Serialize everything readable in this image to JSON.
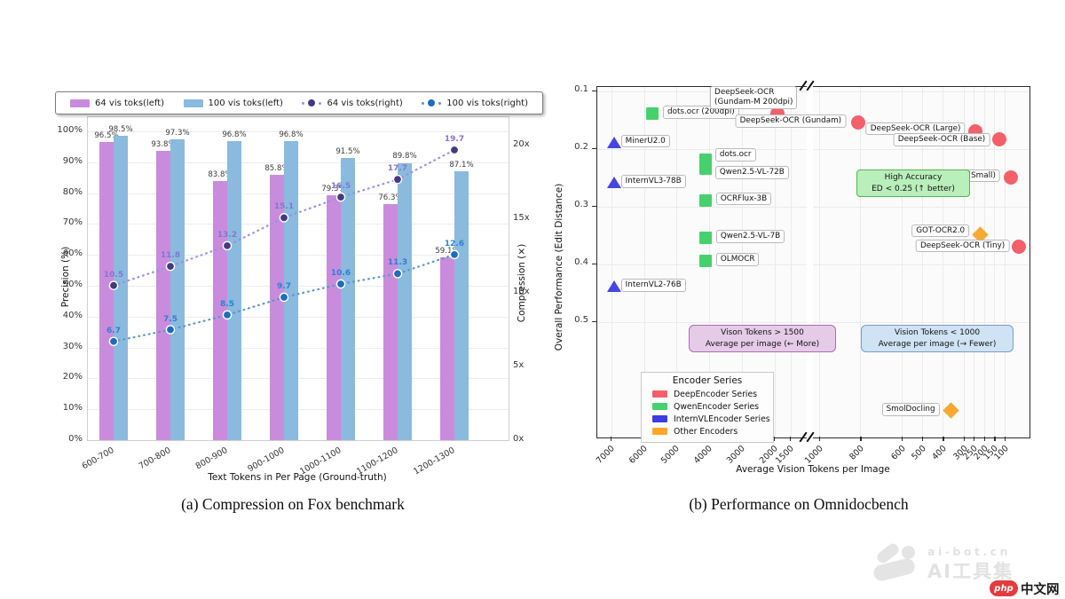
{
  "figure": {
    "caption_a": "(a)  Compression on Fox benchmark",
    "caption_b": "(b)  Performance on Omnidocbench"
  },
  "watermark": {
    "site": "ai-bot.cn",
    "brand": "AI工具集",
    "php_badge": "php",
    "php_site": "中文网"
  },
  "chart_data": [
    {
      "type": "bar",
      "title": "",
      "xlabel": "Text Tokens in Per Page (Ground-truth)",
      "ylabel_left": "Precision (%)",
      "ylabel_right": "Compression (×)",
      "categories": [
        "600-700",
        "700-800",
        "800-900",
        "900-1000",
        "1000-1100",
        "1100-1200",
        "1200-1300"
      ],
      "yticks_left": [
        "0%",
        "10%",
        "20%",
        "30%",
        "40%",
        "50%",
        "60%",
        "70%",
        "80%",
        "90%",
        "100%"
      ],
      "yticks_right": [
        "0x",
        "5x",
        "10x",
        "15x",
        "20x"
      ],
      "ylim_left": [
        0,
        104.5
      ],
      "ylim_right": [
        0,
        21.9
      ],
      "grid": "horizontal",
      "series": [
        {
          "name": "64 vis toks(left)",
          "type": "bar",
          "axis": "left",
          "color": "#c98cdc",
          "values": [
            96.5,
            93.8,
            83.8,
            85.8,
            79.3,
            76.3,
            59.1
          ]
        },
        {
          "name": "100 vis toks(left)",
          "type": "bar",
          "axis": "left",
          "color": "#8abade",
          "values": [
            98.5,
            97.3,
            96.8,
            96.8,
            91.5,
            89.8,
            87.1
          ]
        },
        {
          "name": "64 vis toks(right)",
          "type": "line",
          "axis": "right",
          "line_color": "#9a90e0",
          "dot_color": "#453a80",
          "label_color": "#8377cf",
          "values": [
            10.5,
            11.8,
            13.2,
            15.1,
            16.5,
            17.7,
            19.7
          ]
        },
        {
          "name": "100 vis toks(right)",
          "type": "line",
          "axis": "right",
          "line_color": "#5e93cc",
          "dot_color": "#1d6cbe",
          "label_color": "#2b80d5",
          "values": [
            6.7,
            7.5,
            8.5,
            9.7,
            10.6,
            11.3,
            12.6
          ]
        }
      ]
    },
    {
      "type": "scatter",
      "xlabel": "Average Vision Tokens per Image",
      "ylabel": "Overall Performance (Edit Distance)",
      "x_axis": {
        "reversed": true,
        "broken": true,
        "left_ticks": [
          7000,
          6000,
          5000,
          4000,
          3000,
          2000,
          1500
        ],
        "right_ticks": [
          1000,
          800,
          600,
          500,
          400,
          300,
          250,
          200,
          150,
          100
        ]
      },
      "y_axis": {
        "ticks": [
          0.1,
          0.2,
          0.3,
          0.4,
          0.5
        ],
        "range": [
          0.09,
          0.7
        ],
        "direction": "inverted (lower ED is higher)"
      },
      "series_colors": {
        "DeepEncoder": "#f4606a",
        "QwenEncoder": "#47d16e",
        "InternVLEncoder": "#4646e0",
        "Other": "#f7a934"
      },
      "points": [
        {
          "name": "MinerU2.0",
          "tokens": 6900,
          "ed": 0.19,
          "series": "InternVLEncoder",
          "marker": "triangle",
          "panel": "left",
          "lx": 8,
          "ly": -9,
          "anchor": "left"
        },
        {
          "name": "InternVL3-78B",
          "tokens": 6900,
          "ed": 0.26,
          "series": "InternVLEncoder",
          "marker": "triangle",
          "panel": "left",
          "lx": 8,
          "ly": -9,
          "anchor": "left"
        },
        {
          "name": "InternVL2-76B",
          "tokens": 6900,
          "ed": 0.44,
          "series": "InternVLEncoder",
          "marker": "triangle",
          "panel": "left",
          "lx": 8,
          "ly": -9,
          "anchor": "left"
        },
        {
          "name": "dots.ocr (200dpi)",
          "tokens": 5720,
          "ed": 0.14,
          "series": "QwenEncoder",
          "marker": "square",
          "panel": "left",
          "lx": 12,
          "ly": -9,
          "anchor": "left"
        },
        {
          "name": "dots.ocr",
          "tokens": 4090,
          "ed": 0.22,
          "series": "QwenEncoder",
          "marker": "square",
          "panel": "left",
          "lx": 11,
          "ly": -13,
          "anchor": "left"
        },
        {
          "name": "Qwen2.5-VL-72B",
          "tokens": 4090,
          "ed": 0.235,
          "series": "QwenEncoder",
          "marker": "square",
          "panel": "left",
          "lx": 11,
          "ly": -3,
          "anchor": "left"
        },
        {
          "name": "OCRFlux-3B",
          "tokens": 4090,
          "ed": 0.29,
          "series": "QwenEncoder",
          "marker": "square",
          "panel": "left",
          "lx": 12,
          "ly": -9,
          "anchor": "left"
        },
        {
          "name": "Qwen2.5-VL-7B",
          "tokens": 4090,
          "ed": 0.355,
          "series": "QwenEncoder",
          "marker": "square",
          "panel": "left",
          "lx": 12,
          "ly": -9,
          "anchor": "left"
        },
        {
          "name": "OLMOCR",
          "tokens": 4090,
          "ed": 0.395,
          "series": "QwenEncoder",
          "marker": "square",
          "panel": "left",
          "lx": 12,
          "ly": -9,
          "anchor": "left"
        },
        {
          "name": "DeepSeek-OCR (Gundam-M 200dpi)",
          "label_lines": [
            "DeepSeek-OCR",
            "(Gundam-M 200dpi)"
          ],
          "tokens": 1880,
          "ed": 0.14,
          "series": "DeepEncoder",
          "marker": "circle",
          "panel": "left",
          "lx": -76,
          "ly": -31,
          "anchor": "left"
        },
        {
          "name": "DeepSeek-OCR (Gundam)",
          "tokens": 810,
          "ed": 0.155,
          "series": "DeepEncoder",
          "marker": "circle",
          "panel": "right",
          "lx": -14,
          "ly": -9,
          "anchor": "right"
        },
        {
          "name": "DeepSeek-OCR (Large)",
          "tokens": 240,
          "ed": 0.17,
          "series": "DeepEncoder",
          "marker": "circle",
          "panel": "right",
          "lx": -12,
          "ly": -10,
          "anchor": "right"
        },
        {
          "name": "DeepSeek-OCR (Base)",
          "tokens": 125,
          "ed": 0.185,
          "series": "DeepEncoder",
          "marker": "circle",
          "panel": "right",
          "lx": -11,
          "ly": -7,
          "anchor": "right"
        },
        {
          "name": "DeepSeek-OCR (Small)",
          "tokens": 70,
          "ed": 0.25,
          "series": "DeepEncoder",
          "marker": "circle",
          "panel": "right",
          "lx": -12,
          "ly": -9,
          "anchor": "right"
        },
        {
          "name": "GOT-OCR2.0",
          "tokens": 220,
          "ed": 0.35,
          "series": "Other",
          "marker": "diamond",
          "panel": "right",
          "lx": -12,
          "ly": -12,
          "anchor": "right"
        },
        {
          "name": "DeepSeek-OCR (Tiny)",
          "tokens": 30,
          "ed": 0.37,
          "series": "DeepEncoder",
          "marker": "circle",
          "panel": "right",
          "lx": -11,
          "ly": -8,
          "anchor": "right"
        },
        {
          "name": "SmolDocling",
          "tokens": 360,
          "ed": 0.655,
          "series": "Other",
          "marker": "diamond",
          "panel": "right",
          "lx": -13,
          "ly": -9,
          "anchor": "right"
        }
      ],
      "annotations": {
        "high_accuracy": {
          "line1": "High Accuracy",
          "line2": "ED < 0.25 (↑ better)"
        },
        "more_tokens": {
          "line1": "Vison Tokens > 1500",
          "line2": "Average per image (← More)"
        },
        "fewer_tokens": {
          "line1": "Vision Tokens < 1000",
          "line2": "Average per image (→ Fewer)"
        }
      },
      "legend": {
        "title": "Encoder Series",
        "entries": [
          {
            "label": "DeepEncoder Series",
            "color": "#f4606a"
          },
          {
            "label": "QwenEncoder Series",
            "color": "#47d16e"
          },
          {
            "label": "InternVLEncoder Series",
            "color": "#3d3de2"
          },
          {
            "label": "Other Encoders",
            "color": "#ffa726"
          }
        ]
      }
    }
  ]
}
